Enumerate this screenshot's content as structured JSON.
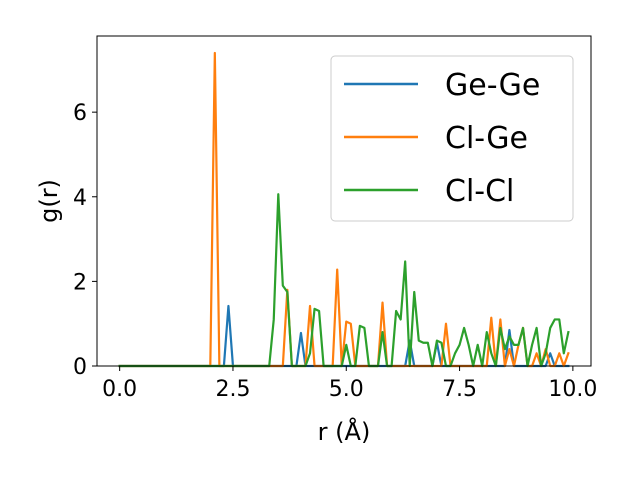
{
  "chart_data": {
    "type": "line",
    "title": "",
    "xlabel": "r (Å)",
    "ylabel": "g(r)",
    "xlim": [
      -0.5,
      10.4
    ],
    "ylim": [
      0,
      7.8
    ],
    "xticks": [
      "0.0",
      "2.5",
      "5.0",
      "7.5",
      "10.0"
    ],
    "xtick_values": [
      0,
      2.5,
      5,
      7.5,
      10
    ],
    "yticks": [
      "0",
      "2",
      "4",
      "6"
    ],
    "ytick_values": [
      0,
      2,
      4,
      6
    ],
    "grid": false,
    "legend_position": "top-right",
    "x": [
      0.0,
      0.1,
      0.2,
      0.3,
      0.4,
      0.5,
      0.6,
      0.7,
      0.8,
      0.9,
      1.0,
      1.1,
      1.2,
      1.3,
      1.4,
      1.5,
      1.6,
      1.7,
      1.8,
      1.9,
      2.0,
      2.1,
      2.2,
      2.3,
      2.4,
      2.5,
      2.6,
      2.7,
      2.8,
      2.9,
      3.0,
      3.1,
      3.2,
      3.3,
      3.4,
      3.5,
      3.6,
      3.7,
      3.8,
      3.9,
      4.0,
      4.1,
      4.2,
      4.3,
      4.4,
      4.5,
      4.6,
      4.7,
      4.8,
      4.9,
      5.0,
      5.1,
      5.2,
      5.3,
      5.4,
      5.5,
      5.6,
      5.7,
      5.8,
      5.9,
      6.0,
      6.1,
      6.2,
      6.3,
      6.4,
      6.5,
      6.6,
      6.7,
      6.8,
      6.9,
      7.0,
      7.1,
      7.2,
      7.3,
      7.4,
      7.5,
      7.6,
      7.7,
      7.8,
      7.9,
      8.0,
      8.1,
      8.2,
      8.3,
      8.4,
      8.5,
      8.6,
      8.7,
      8.8,
      8.9,
      9.0,
      9.1,
      9.2,
      9.3,
      9.4,
      9.5,
      9.6,
      9.7,
      9.8,
      9.9
    ],
    "series": [
      {
        "name": "Ge-Ge",
        "color": "#1f77b4",
        "values": [
          0,
          0,
          0,
          0,
          0,
          0,
          0,
          0,
          0,
          0,
          0,
          0,
          0,
          0,
          0,
          0,
          0,
          0,
          0,
          0,
          0,
          0,
          0,
          0,
          1.42,
          0,
          0,
          0,
          0,
          0,
          0,
          0,
          0,
          0,
          0,
          0,
          0,
          0,
          0,
          0,
          0.78,
          0,
          0,
          0,
          0,
          0,
          0,
          0,
          0,
          0,
          0,
          0,
          0,
          0,
          0,
          0,
          0,
          0,
          0,
          0,
          0,
          0,
          0,
          0,
          0.6,
          0,
          0,
          0,
          0,
          0,
          0.55,
          0,
          0,
          0,
          0,
          0,
          0,
          0,
          0,
          0,
          0,
          0,
          0,
          0,
          0,
          0,
          0.85,
          0,
          0,
          0,
          0,
          0,
          0,
          0,
          0,
          0.3,
          0,
          0,
          0,
          0
        ]
      },
      {
        "name": "Cl-Ge",
        "color": "#ff7f0e",
        "values": [
          0,
          0,
          0,
          0,
          0,
          0,
          0,
          0,
          0,
          0,
          0,
          0,
          0,
          0,
          0,
          0,
          0,
          0,
          0,
          0,
          0,
          7.4,
          0,
          0,
          0,
          0,
          0,
          0,
          0,
          0,
          0,
          0,
          0,
          0,
          0,
          0,
          0,
          1.8,
          0,
          0,
          0,
          0,
          1.42,
          0,
          0,
          0,
          0,
          0,
          2.28,
          0,
          1.05,
          1.0,
          0,
          0,
          0,
          0,
          0,
          0,
          1.5,
          0,
          0,
          0,
          0,
          0,
          0,
          0,
          0,
          0,
          0,
          0,
          0,
          0,
          1.0,
          0,
          0,
          0,
          0,
          0,
          0,
          0,
          0,
          0,
          1.14,
          0,
          1.1,
          0,
          0.4,
          0,
          0.5,
          0.9,
          0,
          0,
          0.3,
          0,
          0.4,
          0,
          0,
          0.3,
          0,
          0.3
        ]
      },
      {
        "name": "Cl-Cl",
        "color": "#2ca02c",
        "values": [
          0,
          0,
          0,
          0,
          0,
          0,
          0,
          0,
          0,
          0,
          0,
          0,
          0,
          0,
          0,
          0,
          0,
          0,
          0,
          0,
          0,
          0,
          0,
          0,
          0,
          0,
          0,
          0,
          0,
          0,
          0,
          0,
          0,
          0,
          1.1,
          4.06,
          1.9,
          1.75,
          0,
          0,
          0,
          0,
          0.3,
          1.35,
          1.3,
          0,
          0,
          0,
          0,
          0,
          0.5,
          0,
          0,
          0.95,
          0.9,
          0,
          0,
          0,
          0.8,
          0,
          0,
          1.3,
          1.1,
          2.47,
          0,
          1.75,
          0.6,
          0.55,
          0.55,
          0,
          0.6,
          0.55,
          0,
          0,
          0.3,
          0.5,
          0.9,
          0.5,
          0,
          0.5,
          0,
          0.8,
          0.3,
          0,
          0.9,
          0.4,
          0.7,
          0.5,
          0.5,
          0.9,
          0,
          0.5,
          0.9,
          0,
          0.3,
          0.9,
          1.1,
          1.1,
          0.3,
          0.8
        ]
      }
    ]
  }
}
